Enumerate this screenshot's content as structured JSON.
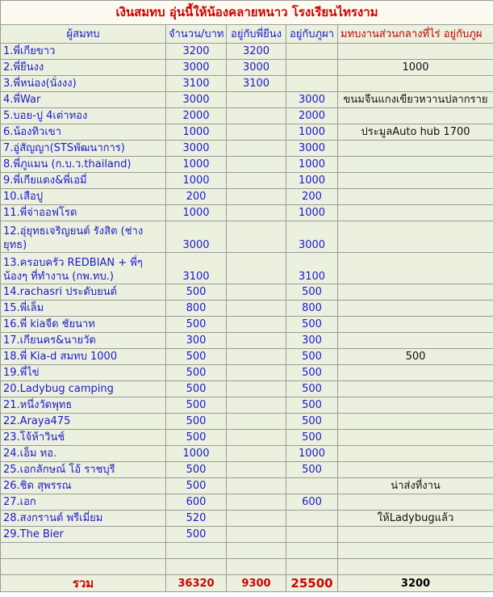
{
  "title": "เงินสมทบ อุ่นนี้ให้น้องคลายหนาว โรงเรียนไทรงาม",
  "table": {
    "header": [
      "ผู้สมทบ",
      "จำนวน/บาท",
      "อยู่กับพี่ยีนง",
      "อยู่กับภูผา",
      "มทบงานส่วนกลางที่ไร่ อยู่กับภูผ"
    ],
    "rows": [
      [
        "1.พี่เกียขาว",
        3200,
        3200,
        null,
        null
      ],
      [
        "2.พี่ยีนงง",
        3000,
        3000,
        null,
        1000
      ],
      [
        "3.พี่หน่อง(นั่งงง)",
        3100,
        3100,
        null,
        null
      ],
      [
        "4.พี่War",
        3000,
        null,
        3000,
        "ขนมจีนแกงเขียวหวานปลากราย"
      ],
      [
        "5.บอย-ปู 4เต่าทอง",
        2000,
        null,
        2000,
        null
      ],
      [
        "6.น้องทิวเขา",
        1000,
        null,
        1000,
        "ประมูลAuto hub 1700"
      ],
      [
        "7.อู่สัญญา(STSพัฒนาการ)",
        3000,
        null,
        3000,
        null
      ],
      [
        "8.พี่ภูแมน (ก.บ.ว.thailand)",
        1000,
        null,
        1000,
        null
      ],
      [
        "9.พี่เกียแดง&พี่เอมี่",
        1000,
        null,
        1000,
        null
      ],
      [
        "10.เสือปู",
        200,
        null,
        200,
        null
      ],
      [
        "11.พี่จ่าออฟโรด",
        1000,
        null,
        1000,
        null
      ],
      [
        "12.อุ่ยุทธเจริญยนต์ รังสิต (ช่าง ยุทธ)",
        3000,
        null,
        3000,
        null
      ],
      [
        "13.ครอบครัว REDBIAN + พี่ๆ น้องๆ ที่ทำงาน (กพ.ทบ.)",
        3100,
        null,
        3100,
        null
      ],
      [
        "14.rachasri ประดับยนต์",
        500,
        null,
        500,
        null
      ],
      [
        "15.พี่เล็ม",
        800,
        null,
        800,
        null
      ],
      [
        "16.พี่ kiaจืด ชัยนาท",
        500,
        null,
        500,
        null
      ],
      [
        "17.เกียนคร&นายวัด",
        300,
        null,
        300,
        null
      ],
      [
        "18.พี่ Kia-d สมทบ 1000",
        500,
        null,
        500,
        500
      ],
      [
        "19.พี่ไข่",
        500,
        null,
        500,
        null
      ],
      [
        "20.Ladybug camping",
        500,
        null,
        500,
        null
      ],
      [
        "21.หนึ่งวัดพุทธ",
        500,
        null,
        500,
        null
      ],
      [
        "22.Araya475",
        500,
        null,
        500,
        null
      ],
      [
        "23.โจ้ห้าวินช์",
        500,
        null,
        500,
        null
      ],
      [
        "24.เอ็ม ทอ.",
        1000,
        null,
        1000,
        null
      ],
      [
        "25.เอกลักษณ์ โอ้ ราชบุรี",
        500,
        null,
        500,
        null
      ],
      [
        "26.ชิด สุพรรณ",
        500,
        null,
        null,
        "น่าส่งที่งาน"
      ],
      [
        "27.เอก",
        600,
        null,
        600,
        null
      ],
      [
        "28.สงกรานต์ พรีเมี่ยม",
        520,
        null,
        null,
        "ให้Ladybugแล้ว"
      ],
      [
        "29.The Bier",
        500,
        null,
        null,
        null
      ]
    ],
    "total": [
      "รวม",
      36320,
      9300,
      25500,
      3200
    ]
  }
}
